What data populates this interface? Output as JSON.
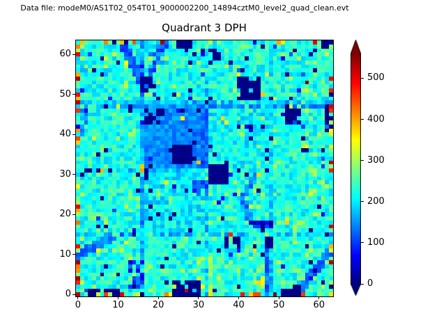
{
  "chart_data": {
    "type": "heatmap",
    "title": "Quadrant 3 DPH",
    "suptitle": "Data file: modeM0/AS1T02_054T01_9000002200_14894cztM0_level2_quad_clean.evt",
    "xlabel": "",
    "ylabel": "",
    "x_ticks": [
      0,
      10,
      20,
      30,
      40,
      50,
      60
    ],
    "y_ticks": [
      0,
      10,
      20,
      30,
      40,
      50,
      60
    ],
    "xlim": [
      -0.5,
      63.5
    ],
    "ylim": [
      -0.5,
      63.5
    ],
    "grid": false,
    "colormap": "jet",
    "colorbar": {
      "position": "right",
      "ticks": [
        0,
        100,
        200,
        300,
        400,
        500
      ],
      "vmin": 0,
      "vmax": 560,
      "extend": "both",
      "under_color": "#000080",
      "over_color": "#800000"
    },
    "heatmap_spec": {
      "size": 64,
      "seed": 7,
      "base": 222,
      "base_jitter": 42,
      "ops": [
        {
          "t": "rand",
          "x0": 0,
          "y0": 0,
          "x1": 63,
          "y1": 63,
          "p": 0.12,
          "v": 285,
          "j": 35
        },
        {
          "t": "rect",
          "x0": 16,
          "y0": 16,
          "x1": 31,
          "y1": 31,
          "v": 200,
          "j": 40,
          "p": 0.8
        },
        {
          "t": "rect",
          "x0": 32,
          "y0": 32,
          "x1": 47,
          "y1": 47,
          "v": 205,
          "j": 40,
          "p": 0.55
        },
        {
          "t": "rect",
          "x0": 16,
          "y0": 32,
          "x1": 31,
          "y1": 47,
          "v": 147,
          "j": 26
        },
        {
          "t": "rect",
          "x0": 16,
          "y0": 0,
          "x1": 16,
          "y1": 63,
          "v": 165,
          "j": 45,
          "p": 0.8
        },
        {
          "t": "rect",
          "x0": 32,
          "y0": 0,
          "x1": 32,
          "y1": 63,
          "v": 180,
          "j": 45,
          "p": 0.65
        },
        {
          "t": "rect",
          "x0": 48,
          "y0": 0,
          "x1": 48,
          "y1": 63,
          "v": 180,
          "j": 45,
          "p": 0.65
        },
        {
          "t": "rect",
          "x0": 0,
          "y0": 15,
          "x1": 63,
          "y1": 15,
          "v": 175,
          "j": 45,
          "p": 0.65
        },
        {
          "t": "rect",
          "x0": 0,
          "y0": 31,
          "x1": 26,
          "y1": 31,
          "v": 180,
          "j": 45,
          "p": 0.55
        },
        {
          "t": "rect",
          "x0": 0,
          "y0": 47,
          "x1": 63,
          "y1": 47,
          "v": 150,
          "j": 35,
          "p": 0.85
        },
        {
          "t": "rect",
          "x0": 0,
          "y0": 48,
          "x1": 63,
          "y1": 48,
          "v": 175,
          "j": 40,
          "p": 0.65
        },
        {
          "t": "rect",
          "x0": 0,
          "y0": 55,
          "x1": 9,
          "y1": 56,
          "v": 190,
          "j": 30,
          "p": 0.8
        },
        {
          "t": "rect",
          "x0": 1,
          "y0": 40,
          "x1": 2,
          "y1": 46,
          "v": 155,
          "j": 40,
          "p": 0.7
        },
        {
          "t": "line",
          "x0": 11,
          "y0": 63,
          "x1": 16.5,
          "y1": 52,
          "w": 1.7,
          "v": 120,
          "j": 30
        },
        {
          "t": "line",
          "x0": 16.5,
          "y0": 52,
          "x1": 22,
          "y1": 63,
          "w": 1.6,
          "v": 115,
          "j": 30
        },
        {
          "t": "rect",
          "x0": 16,
          "y0": 51,
          "x1": 18,
          "y1": 54,
          "v": 8,
          "j": 8,
          "p": 0.75
        },
        {
          "t": "rect",
          "x0": 18,
          "y0": 58,
          "x1": 21,
          "y1": 62,
          "v": 120,
          "j": 60,
          "p": 0.45
        },
        {
          "t": "line",
          "x0": 0,
          "y0": 10,
          "x1": 8,
          "y1": 14,
          "w": 2.4,
          "v": 140,
          "j": 30
        },
        {
          "t": "line",
          "x0": 55,
          "y0": 1,
          "x1": 63,
          "y1": 11,
          "w": 1.8,
          "v": 135,
          "j": 30
        },
        {
          "t": "line",
          "x0": 47,
          "y0": 0,
          "x1": 47,
          "y1": 13,
          "w": 1.1,
          "v": 135,
          "j": 35
        },
        {
          "t": "rect",
          "x0": 47,
          "y0": 12,
          "x1": 48,
          "y1": 14,
          "v": 5,
          "j": 5,
          "p": 0.8
        },
        {
          "t": "line",
          "x0": 33,
          "y0": 0,
          "x1": 33,
          "y1": 9,
          "w": 1.0,
          "v": 300,
          "j": 45
        },
        {
          "t": "line",
          "x0": 44,
          "y0": 30,
          "x1": 41,
          "y1": 24,
          "w": 1.5,
          "v": 140,
          "j": 30
        },
        {
          "t": "line",
          "x0": 41,
          "y0": 24,
          "x1": 43,
          "y1": 18,
          "w": 1.5,
          "v": 140,
          "j": 30
        },
        {
          "t": "line",
          "x0": 43,
          "y0": 18,
          "x1": 48,
          "y1": 17,
          "w": 1.5,
          "v": 60,
          "j": 55
        },
        {
          "t": "rect",
          "x0": 29,
          "y0": 25,
          "x1": 32,
          "y1": 28,
          "v": 110,
          "j": 40,
          "p": 0.7
        },
        {
          "t": "rect",
          "x0": 31,
          "y0": 32,
          "x1": 32,
          "y1": 46,
          "v": 125,
          "j": 30,
          "p": 0.9
        },
        {
          "t": "rect",
          "x0": 13,
          "y0": 2,
          "x1": 16,
          "y1": 8,
          "v": 110,
          "j": 70,
          "p": 0.6
        },
        {
          "t": "rect",
          "x0": 24,
          "y0": 33,
          "x1": 28,
          "y1": 37,
          "v": 4,
          "j": 6
        },
        {
          "t": "rect",
          "x0": 33,
          "y0": 28,
          "x1": 37,
          "y1": 32,
          "v": 4,
          "j": 6
        },
        {
          "t": "rect",
          "x0": 40,
          "y0": 49,
          "x1": 45,
          "y1": 54,
          "v": 4,
          "j": 6,
          "p": 0.85
        },
        {
          "t": "rect",
          "x0": 24,
          "y0": 0,
          "x1": 30,
          "y1": 3,
          "v": 4,
          "j": 6,
          "p": 0.9
        },
        {
          "t": "rect",
          "x0": 3,
          "y0": 0,
          "x1": 10,
          "y1": 1,
          "v": 4,
          "j": 6,
          "p": 0.85
        },
        {
          "t": "rect",
          "x0": 51,
          "y0": 0,
          "x1": 55,
          "y1": 2,
          "v": 4,
          "j": 6,
          "p": 0.9
        },
        {
          "t": "rect",
          "x0": 52,
          "y0": 43,
          "x1": 55,
          "y1": 46,
          "v": 4,
          "j": 6,
          "p": 0.7
        },
        {
          "t": "rect",
          "x0": 17,
          "y0": 43,
          "x1": 21,
          "y1": 46,
          "v": 4,
          "j": 6,
          "p": 0.55
        },
        {
          "t": "rect",
          "x0": 15,
          "y0": 29,
          "x1": 17,
          "y1": 31,
          "v": 4,
          "j": 6,
          "p": 0.8
        },
        {
          "t": "rect",
          "x0": 37,
          "y0": 12,
          "x1": 40,
          "y1": 14,
          "v": 4,
          "j": 6,
          "p": 0.8
        },
        {
          "t": "rect",
          "x0": 62,
          "y0": 41,
          "x1": 63,
          "y1": 47,
          "v": 4,
          "j": 6,
          "p": 0.85
        },
        {
          "t": "rect",
          "x0": 61,
          "y0": 62,
          "x1": 63,
          "y1": 63,
          "v": 4,
          "j": 6,
          "p": 0.9
        },
        {
          "t": "rect",
          "x0": 25,
          "y0": 62,
          "x1": 30,
          "y1": 63,
          "v": 4,
          "j": 6,
          "p": 0.7
        },
        {
          "t": "rect",
          "x0": 33,
          "y0": 58,
          "x1": 35,
          "y1": 61,
          "v": 4,
          "j": 6,
          "p": 0.5
        },
        {
          "t": "rand",
          "x0": 0,
          "y0": 0,
          "x1": 63,
          "y1": 63,
          "p": 0.022,
          "v": 4,
          "j": 6
        },
        {
          "t": "rand",
          "x0": 0,
          "y0": 0,
          "x1": 63,
          "y1": 63,
          "p": 0.012,
          "v": 95,
          "j": 45
        },
        {
          "t": "rand",
          "x0": 1,
          "y0": 1,
          "x1": 62,
          "y1": 62,
          "p": 0.006,
          "v": 330,
          "j": 60
        },
        {
          "t": "rand",
          "x0": 45,
          "y0": 2,
          "x1": 46,
          "y1": 5,
          "p": 0.5,
          "v": 330,
          "j": 40
        },
        {
          "t": "rand",
          "x0": 0,
          "y0": 0,
          "x1": 0,
          "y1": 63,
          "p": 0.36,
          "v": 400,
          "j": 155
        },
        {
          "t": "rand",
          "x0": 63,
          "y0": 0,
          "x1": 63,
          "y1": 63,
          "p": 0.28,
          "v": 380,
          "j": 150
        },
        {
          "t": "rand",
          "x0": 0,
          "y0": 0,
          "x1": 63,
          "y1": 0,
          "p": 0.3,
          "v": 410,
          "j": 150
        },
        {
          "t": "rand",
          "x0": 0,
          "y0": 63,
          "x1": 63,
          "y1": 63,
          "p": 0.22,
          "v": 360,
          "j": 140
        },
        {
          "t": "set",
          "cells": [
            [
              27,
              1,
              520
            ],
            [
              57,
              53,
              555
            ],
            [
              21,
              63,
              540
            ],
            [
              0,
              48,
              530
            ],
            [
              16,
              31,
              400
            ],
            [
              6,
              31,
              390
            ],
            [
              2,
              31,
              4
            ],
            [
              3,
              31,
              4
            ],
            [
              5,
              31,
              4
            ],
            [
              8,
              31,
              4
            ],
            [
              36,
              44,
              370
            ],
            [
              37,
              43,
              355
            ],
            [
              46,
              50,
              380
            ],
            [
              40,
              55,
              340
            ],
            [
              38,
              15,
              470
            ],
            [
              41,
              0,
              480
            ],
            [
              44,
              0,
              450
            ],
            [
              31,
              2,
              350
            ],
            [
              11,
              0,
              510
            ],
            [
              7,
              0,
              460
            ]
          ]
        }
      ]
    }
  }
}
